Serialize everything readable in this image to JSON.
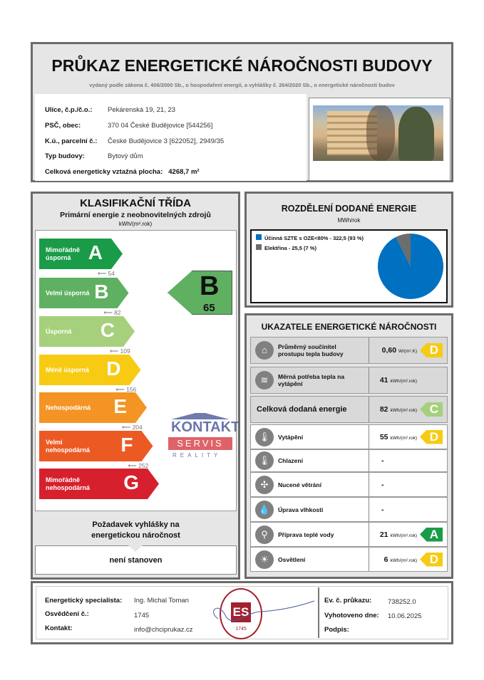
{
  "header": {
    "title": "PRŮKAZ ENERGETICKÉ NÁROČNOSTI BUDOVY",
    "subtitle": "vydaný podle zákona č. 406/2000 Sb., o hospodaření energií, a vyhlášky č. 264/2020 Sb., o energetické náročnosti budov"
  },
  "building": [
    {
      "label": "Ulice, č.p./č.o.:",
      "value": "Pekárenská 19, 21, 23"
    },
    {
      "label": "PSČ, obec:",
      "value": "370 04 České Budějovice [544256]"
    },
    {
      "label": "K.ú., parcelní č.:",
      "value": "České Budějovice 3 [622052], 2949/35"
    },
    {
      "label": "Typ budovy:",
      "value": "Bytový dům"
    }
  ],
  "area": {
    "label": "Celková energeticky vztažná plocha:",
    "value": "4268,7 m²"
  },
  "classification": {
    "title": "KLASIFIKAČNÍ TŘÍDA",
    "subtitle": "Primární energie z neobnovitelných zdrojů",
    "unit": "kWh/(m².rok)",
    "classes": [
      {
        "name": "Mimořádně úsporná",
        "letter": "A",
        "color": "#1a9b48"
      },
      {
        "name": "Velmi úsporná",
        "letter": "B",
        "color": "#5fb061"
      },
      {
        "name": "Úsporná",
        "letter": "C",
        "color": "#a6d07b"
      },
      {
        "name": "Méně úsporná",
        "letter": "D",
        "color": "#f7cb13"
      },
      {
        "name": "Nehospodárná",
        "letter": "E",
        "color": "#f39424"
      },
      {
        "name": "Velmi nehospodárná",
        "letter": "F",
        "color": "#ec5a24"
      },
      {
        "name": "Mimořádně nehospodárná",
        "letter": "G",
        "color": "#d7202d"
      }
    ],
    "thresholds": [
      "54",
      "82",
      "109",
      "156",
      "204",
      "252"
    ],
    "result": {
      "letter": "B",
      "value": "65",
      "color": "#5fb061"
    },
    "requirement": {
      "title": "Požadavek vyhlášky na energetickou náročnost",
      "value": "není stanoven"
    }
  },
  "chart_data": {
    "type": "pie",
    "title": "ROZDĚLENÍ DODANÉ ENERGIE",
    "unit": "MWh/rok",
    "legend": "top-left",
    "series": [
      {
        "name": "Účinná SZTE s OZE<80% - 322,5 (93 %)",
        "value": 322.5,
        "percent": 93,
        "color": "#0070c0"
      },
      {
        "name": "Elektřina - 25,5 (7 %)",
        "value": 25.5,
        "percent": 7,
        "color": "#6d6d6d"
      }
    ]
  },
  "indicators": {
    "title": "UKAZATELE ENERGETICKÉ NÁROČNOSTI",
    "rows": [
      {
        "icon": "house-icon",
        "glyph": "⌂",
        "name": "Průměrný součinitel prostupu tepla budovy",
        "value": "0,60",
        "unit": "W/(m².K)",
        "class": "D",
        "color": "#f7cb13"
      },
      {
        "icon": "heat-demand-icon",
        "glyph": "≋",
        "name": "Měrná potřeba tepla na vytápění",
        "value": "41",
        "unit": "kWh/(m².rok)",
        "class": "",
        "color": ""
      },
      {
        "icon": "",
        "glyph": "",
        "name": "Celková dodaná energie",
        "value": "82",
        "unit": "kWh/(m².rok)",
        "class": "C",
        "color": "#a6d07b"
      },
      {
        "icon": "heating-thermometer-icon",
        "glyph": "🌡",
        "name": "Vytápění",
        "value": "55",
        "unit": "kWh/(m².rok)",
        "class": "D",
        "color": "#f7cb13"
      },
      {
        "icon": "cooling-thermometer-icon",
        "glyph": "🌡",
        "name": "Chlazení",
        "value": "-",
        "unit": "",
        "class": "",
        "color": ""
      },
      {
        "icon": "fan-icon",
        "glyph": "✣",
        "name": "Nucené větrání",
        "value": "-",
        "unit": "",
        "class": "",
        "color": ""
      },
      {
        "icon": "humidity-icon",
        "glyph": "💧",
        "name": "Úprava vlhkosti",
        "value": "-",
        "unit": "",
        "class": "",
        "color": ""
      },
      {
        "icon": "tap-icon",
        "glyph": "⚲",
        "name": "Příprava teplé vody",
        "value": "21",
        "unit": "kWh/(m².rok)",
        "class": "A",
        "color": "#1a9b48"
      },
      {
        "icon": "bulb-icon",
        "glyph": "☀",
        "name": "Osvětlení",
        "value": "6",
        "unit": "kWh/(m².rok)",
        "class": "D",
        "color": "#f7cb13"
      }
    ]
  },
  "footer": {
    "specialist_label": "Energetický specialista:",
    "specialist": "Ing. Michal Toman",
    "cert_label": "Osvědčení č.:",
    "cert": "1745",
    "contact_label": "Kontakt:",
    "contact": "info@chciprukaz.cz",
    "ev_label": "Ev. č. průkazu:",
    "ev": "738252.0",
    "date_label": "Vyhotoveno dne:",
    "date": "10.06.2025",
    "sign_label": "Podpis:"
  },
  "stamp": {
    "text": "ING. MICHAL TOMAN energetický specialista 1745",
    "letters": "ES"
  },
  "watermark": {
    "line1": "KONTAKT",
    "line2": "SERVIS",
    "line3": "REALITY"
  }
}
